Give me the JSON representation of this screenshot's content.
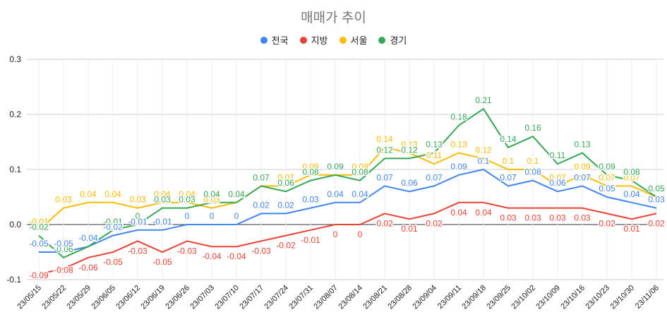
{
  "chart_data": {
    "type": "line",
    "title": "매매가 추이",
    "legend_position": "top",
    "grid": true,
    "ylim": [
      -0.1,
      0.3
    ],
    "yticks": [
      "-0.1",
      "0.0",
      "0.1",
      "0.2",
      "0.3"
    ],
    "categories": [
      "23/05/15",
      "23/05/22",
      "23/05/29",
      "23/06/05",
      "23/06/12",
      "23/06/19",
      "23/06/26",
      "23/07/03",
      "23/07/10",
      "23/07/17",
      "23/07/24",
      "23/07/31",
      "23/08/07",
      "23/08/14",
      "23/08/21",
      "23/08/28",
      "23/09/04",
      "23/09/11",
      "23/09/18",
      "23/09/25",
      "23/10/02",
      "23/10/09",
      "23/10/16",
      "23/10/23",
      "23/10/30",
      "23/11/06"
    ],
    "series": [
      {
        "name": "전국",
        "color": "#4285f4",
        "values": [
          -0.05,
          -0.05,
          -0.04,
          -0.02,
          -0.01,
          -0.01,
          0,
          0,
          0,
          0.02,
          0.02,
          0.03,
          0.04,
          0.04,
          0.07,
          0.06,
          0.07,
          0.09,
          0.1,
          0.07,
          0.08,
          0.06,
          0.07,
          0.05,
          0.04,
          0.03
        ]
      },
      {
        "name": "지방",
        "color": "#ea4335",
        "values": [
          -0.09,
          -0.08,
          -0.06,
          -0.05,
          -0.03,
          -0.05,
          -0.03,
          -0.04,
          -0.04,
          -0.03,
          -0.02,
          -0.01,
          0,
          0,
          0.02,
          0.01,
          0.02,
          0.04,
          0.04,
          0.03,
          0.03,
          0.03,
          0.03,
          0.02,
          0.01,
          0.02
        ]
      },
      {
        "name": "서울",
        "color": "#fbbc04",
        "values": [
          -0.01,
          0.03,
          0.04,
          0.04,
          0.03,
          0.04,
          0.04,
          0.03,
          0.04,
          0.07,
          0.07,
          0.09,
          0.09,
          0.09,
          0.14,
          0.13,
          0.11,
          0.13,
          0.12,
          0.1,
          0.1,
          0.07,
          0.09,
          0.07,
          0.07,
          0.05
        ]
      },
      {
        "name": "경기",
        "color": "#34a853",
        "values": [
          -0.02,
          -0.06,
          -0.04,
          -0.01,
          0,
          0.03,
          0.03,
          0.04,
          0.04,
          0.07,
          0.06,
          0.08,
          0.09,
          0.08,
          0.12,
          0.12,
          0.13,
          0.18,
          0.21,
          0.14,
          0.16,
          0.11,
          0.13,
          0.09,
          0.08,
          0.05
        ]
      }
    ]
  }
}
